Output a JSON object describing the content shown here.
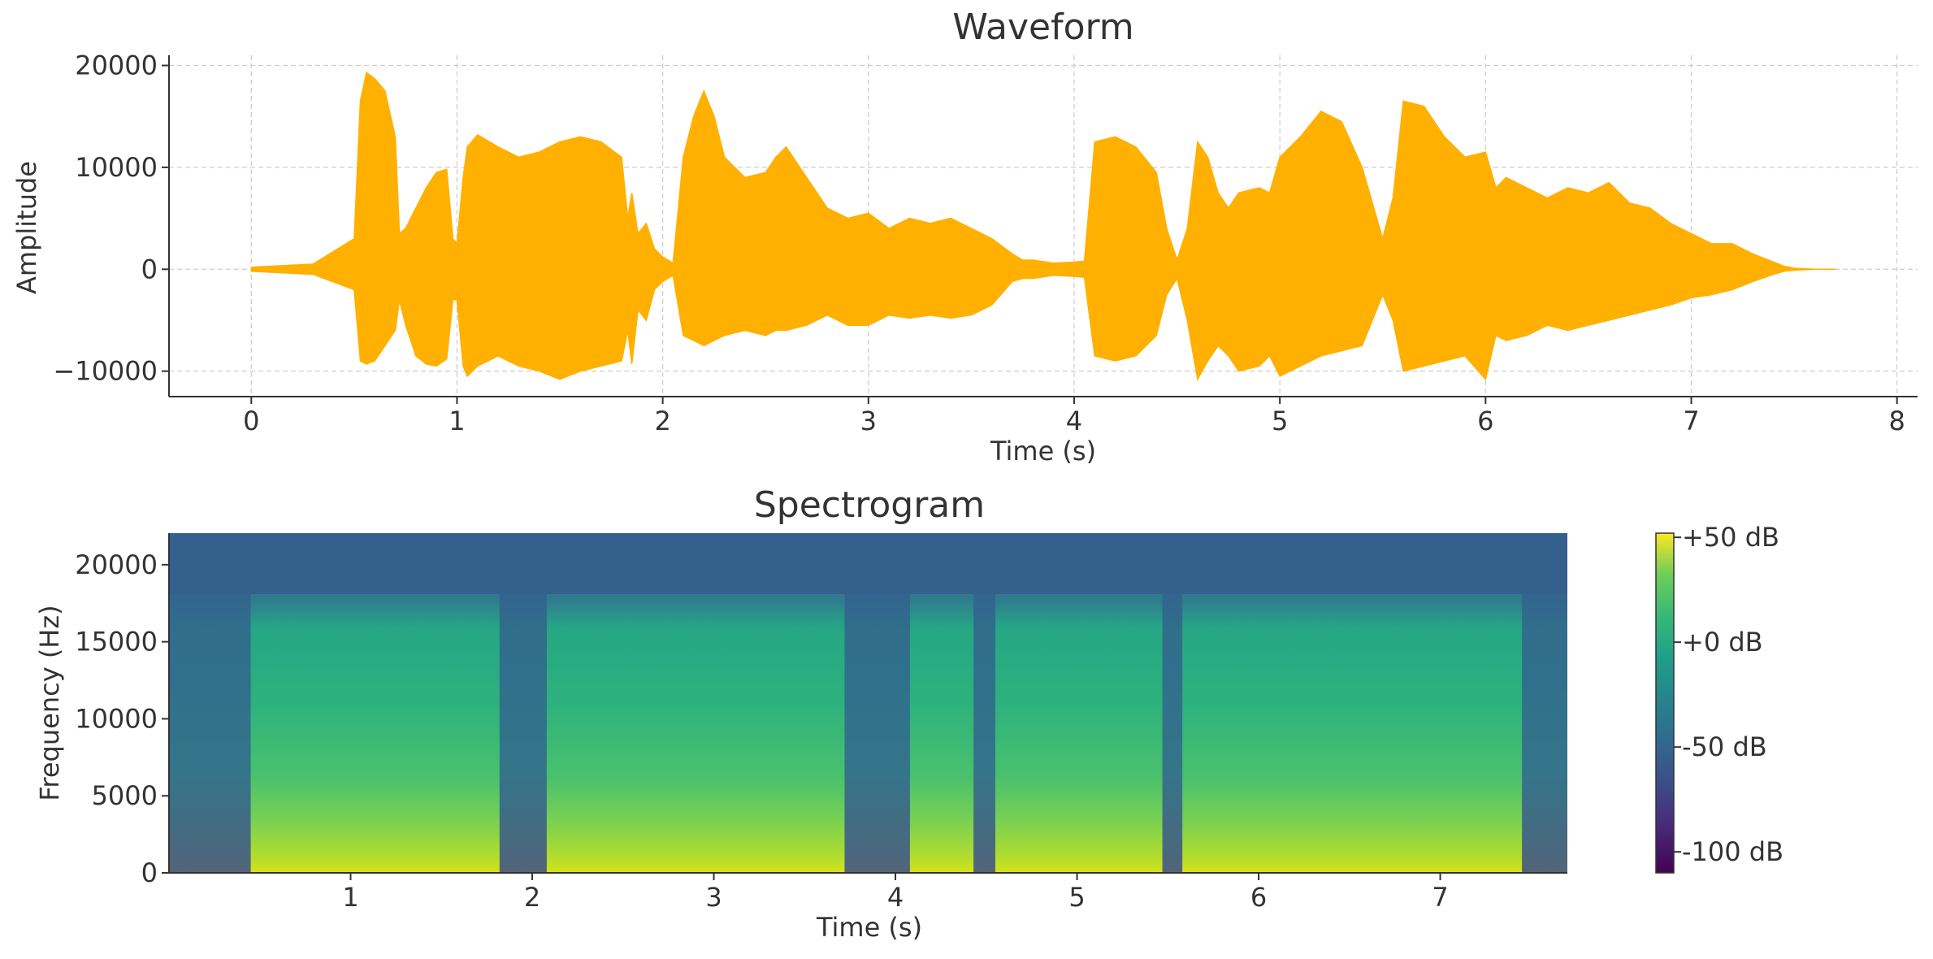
{
  "chart_data": [
    {
      "type": "area",
      "title": "Waveform",
      "xlabel": "Time (s)",
      "ylabel": "Amplitude",
      "xlim": [
        -0.4,
        8.1
      ],
      "ylim": [
        -12500,
        21000
      ],
      "xticks": [
        0,
        1,
        2,
        3,
        4,
        5,
        6,
        7,
        8
      ],
      "xtick_labels": [
        "0",
        "1",
        "2",
        "3",
        "4",
        "5",
        "6",
        "7",
        "8"
      ],
      "yticks": [
        -10000,
        0,
        10000,
        20000
      ],
      "ytick_labels": [
        "−10000",
        "0",
        "10000",
        "20000"
      ],
      "grid": true,
      "color": "#FFB000",
      "series": [
        {
          "x": [
            0,
            0.3,
            0.5,
            0.53,
            0.56,
            0.6,
            0.65,
            0.7,
            0.72,
            0.75,
            0.8,
            0.85,
            0.9,
            0.95,
            0.98,
            1.0,
            1.03,
            1.05,
            1.1,
            1.2,
            1.3,
            1.4,
            1.5,
            1.6,
            1.7,
            1.8,
            1.83,
            1.85,
            1.88,
            1.92,
            1.96,
            2.0,
            2.05,
            2.1,
            2.15,
            2.2,
            2.25,
            2.3,
            2.4,
            2.5,
            2.55,
            2.6,
            2.7,
            2.8,
            2.9,
            3.0,
            3.1,
            3.2,
            3.3,
            3.4,
            3.5,
            3.6,
            3.7,
            3.75,
            3.8,
            3.9,
            4.0,
            4.05,
            4.1,
            4.2,
            4.3,
            4.4,
            4.45,
            4.5,
            4.55,
            4.6,
            4.65,
            4.7,
            4.75,
            4.8,
            4.9,
            4.95,
            5.0,
            5.1,
            5.2,
            5.3,
            5.4,
            5.5,
            5.55,
            5.6,
            5.7,
            5.8,
            5.9,
            6.0,
            6.05,
            6.1,
            6.2,
            6.3,
            6.4,
            6.5,
            6.6,
            6.7,
            6.8,
            6.9,
            7.0,
            7.1,
            7.2,
            7.3,
            7.4,
            7.45,
            7.5,
            7.6,
            7.7
          ],
          "upper": [
            200,
            500,
            3000,
            16500,
            19300,
            18700,
            17500,
            13000,
            3500,
            4000,
            6000,
            8000,
            9500,
            9800,
            3000,
            2500,
            9000,
            12000,
            13200,
            12000,
            11000,
            11500,
            12500,
            13000,
            12500,
            11000,
            5000,
            7500,
            3500,
            4500,
            2000,
            1200,
            600,
            11000,
            15000,
            17500,
            15000,
            11000,
            9000,
            9500,
            11000,
            12000,
            9000,
            6000,
            5000,
            5500,
            4000,
            5000,
            4500,
            5000,
            4000,
            3000,
            1500,
            900,
            900,
            600,
            700,
            800,
            12500,
            13000,
            12000,
            9500,
            4000,
            900,
            4000,
            12500,
            11000,
            7500,
            6000,
            7500,
            8000,
            7500,
            11000,
            13000,
            15500,
            14500,
            10000,
            3000,
            7000,
            16500,
            16000,
            13000,
            11000,
            11500,
            8000,
            9000,
            8000,
            7000,
            8000,
            7500,
            8500,
            6500,
            6000,
            4500,
            3500,
            2500,
            2500,
            1500,
            700,
            300,
            100,
            0,
            0
          ],
          "lower": [
            -200,
            -500,
            -2000,
            -9000,
            -9300,
            -9000,
            -7500,
            -6000,
            -3000,
            -5500,
            -8500,
            -9300,
            -9500,
            -8800,
            -3000,
            -3000,
            -9500,
            -10500,
            -9500,
            -8500,
            -9500,
            -10000,
            -10800,
            -10000,
            -9500,
            -9000,
            -6000,
            -9300,
            -4000,
            -5000,
            -2000,
            -1200,
            -600,
            -6500,
            -7000,
            -7500,
            -7000,
            -6500,
            -6000,
            -6500,
            -6000,
            -6000,
            -5500,
            -4500,
            -5500,
            -5500,
            -4500,
            -4800,
            -4500,
            -4800,
            -4500,
            -3500,
            -1200,
            -900,
            -900,
            -600,
            -700,
            -800,
            -8500,
            -9000,
            -8500,
            -6500,
            -2500,
            -900,
            -5000,
            -10800,
            -9000,
            -7500,
            -8500,
            -10000,
            -9500,
            -8500,
            -10500,
            -9500,
            -8500,
            -8000,
            -7500,
            -2500,
            -5000,
            -10000,
            -9500,
            -9000,
            -8500,
            -10800,
            -6500,
            -7000,
            -6500,
            -5500,
            -6000,
            -5500,
            -5000,
            -4500,
            -4000,
            -3500,
            -2800,
            -2500,
            -2000,
            -1200,
            -500,
            -200,
            -100,
            0,
            0
          ]
        }
      ]
    },
    {
      "type": "heatmap",
      "title": "Spectrogram",
      "xlabel": "Time (s)",
      "ylabel": "Frequency (Hz)",
      "xlim": [
        0,
        7.7
      ],
      "ylim": [
        0,
        22050
      ],
      "xticks": [
        1,
        2,
        3,
        4,
        5,
        6,
        7
      ],
      "xtick_labels": [
        "1",
        "2",
        "3",
        "4",
        "5",
        "6",
        "7"
      ],
      "yticks": [
        0,
        5000,
        10000,
        15000,
        20000
      ],
      "ytick_labels": [
        "0",
        "5000",
        "10000",
        "15000",
        "20000"
      ],
      "colormap": "viridis",
      "colorbar": {
        "range_db": [
          -110,
          52
        ],
        "ticks": [
          50,
          0,
          -50,
          -100
        ],
        "tick_labels": [
          "+50 dB",
          "+0 dB",
          "-50 dB",
          "-100 dB"
        ]
      },
      "silence_intervals_s": [
        [
          0,
          0.45
        ],
        [
          1.82,
          2.08
        ],
        [
          3.72,
          4.08
        ],
        [
          4.43,
          4.55
        ],
        [
          5.47,
          5.58
        ],
        [
          7.45,
          7.7
        ]
      ]
    }
  ]
}
